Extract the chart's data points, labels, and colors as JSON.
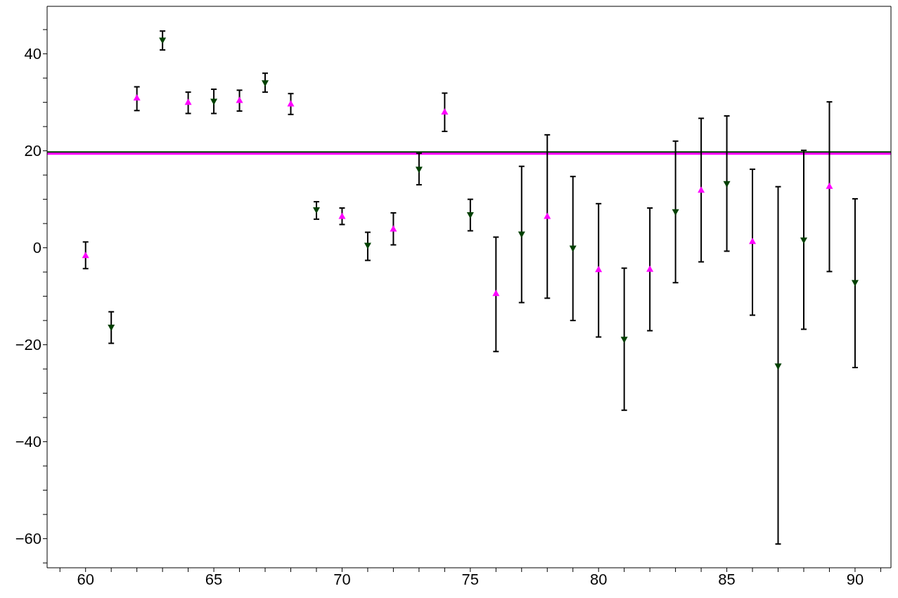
{
  "chart_data": {
    "type": "scatter",
    "xlim": [
      58.5,
      91.4
    ],
    "ylim": [
      -66,
      49.8
    ],
    "xticks": [
      {
        "value": 59,
        "label": null
      },
      60,
      {
        "value": 61,
        "label": null
      },
      {
        "value": 62,
        "label": null
      },
      {
        "value": 63,
        "label": null
      },
      {
        "value": 64,
        "label": null
      },
      65,
      {
        "value": 66,
        "label": null
      },
      {
        "value": 67,
        "label": null
      },
      {
        "value": 68,
        "label": null
      },
      {
        "value": 69,
        "label": null
      },
      70,
      {
        "value": 71,
        "label": null
      },
      {
        "value": 72,
        "label": null
      },
      {
        "value": 73,
        "label": null
      },
      {
        "value": 74,
        "label": null
      },
      75,
      {
        "value": 76,
        "label": null
      },
      {
        "value": 77,
        "label": null
      },
      {
        "value": 78,
        "label": null
      },
      {
        "value": 79,
        "label": null
      },
      80,
      {
        "value": 81,
        "label": null
      },
      {
        "value": 82,
        "label": null
      },
      {
        "value": 83,
        "label": null
      },
      {
        "value": 84,
        "label": null
      },
      85,
      {
        "value": 86,
        "label": null
      },
      {
        "value": 87,
        "label": null
      },
      {
        "value": 88,
        "label": null
      },
      {
        "value": 89,
        "label": null
      },
      90,
      {
        "value": 91,
        "label": null
      }
    ],
    "yticks": [
      {
        "value": -65,
        "label": null
      },
      {
        "value": -60,
        "label": "−60"
      },
      {
        "value": -55,
        "label": null
      },
      {
        "value": -50,
        "label": null
      },
      {
        "value": -45,
        "label": null
      },
      {
        "value": -40,
        "label": "−40"
      },
      {
        "value": -35,
        "label": null
      },
      {
        "value": -30,
        "label": null
      },
      {
        "value": -25,
        "label": null
      },
      {
        "value": -20,
        "label": "−20"
      },
      {
        "value": -15,
        "label": null
      },
      {
        "value": -10,
        "label": null
      },
      {
        "value": -5,
        "label": null
      },
      0,
      {
        "value": 5,
        "label": null
      },
      {
        "value": 10,
        "label": null
      },
      {
        "value": 15,
        "label": null
      },
      20,
      {
        "value": 25,
        "label": null
      },
      {
        "value": 30,
        "label": null
      },
      {
        "value": 35,
        "label": null
      },
      40,
      {
        "value": 45,
        "label": null
      }
    ],
    "grid": false,
    "legend": false,
    "ref_lines": [
      {
        "axis": "y",
        "value": 19.7,
        "color": "#004000"
      },
      {
        "axis": "y",
        "value": 19.4,
        "color": "#ff00ff"
      }
    ],
    "series": [
      {
        "color": "#ff00ff",
        "marker": "triangle",
        "x": [
          60,
          62,
          64,
          66,
          68,
          70,
          72,
          74,
          76,
          78,
          80,
          82,
          84,
          86,
          89
        ],
        "values": [
          -1.7,
          30.8,
          29.9,
          30.3,
          29.6,
          6.4,
          3.8,
          27.9,
          -9.5,
          6.4,
          -4.6,
          -4.5,
          11.8,
          1.2,
          12.6
        ],
        "errors": [
          [
            -4.3,
            1.2
          ],
          [
            28.3,
            33.2
          ],
          [
            27.7,
            32.1
          ],
          [
            28.2,
            32.5
          ],
          [
            27.5,
            31.8
          ],
          [
            4.8,
            8.2
          ],
          [
            0.6,
            7.2
          ],
          [
            24.0,
            31.9
          ],
          [
            -21.4,
            2.2
          ],
          [
            -10.4,
            23.3
          ],
          [
            -18.4,
            9.1
          ],
          [
            -17.1,
            8.2
          ],
          [
            -2.9,
            26.7
          ],
          [
            -13.9,
            16.2
          ],
          [
            -4.9,
            30.1
          ]
        ]
      },
      {
        "color": "#004000",
        "marker": "triangle-down",
        "x": [
          61,
          63,
          65,
          67,
          69,
          71,
          73,
          75,
          77,
          79,
          81,
          83,
          85,
          87,
          88,
          90
        ],
        "values": [
          -16.3,
          42.9,
          30.3,
          34.1,
          7.9,
          0.6,
          16.3,
          6.9,
          2.9,
          0,
          -18.8,
          7.5,
          13.3,
          -24.3,
          1.7,
          -7.1
        ],
        "errors": [
          [
            -19.7,
            -13.2
          ],
          [
            40.8,
            44.7
          ],
          [
            27.7,
            32.7
          ],
          [
            32.1,
            36.0
          ],
          [
            5.9,
            9.5
          ],
          [
            -2.6,
            3.2
          ],
          [
            13.0,
            19.5
          ],
          [
            3.5,
            10.0
          ],
          [
            -11.3,
            16.8
          ],
          [
            -15.0,
            14.7
          ],
          [
            -33.5,
            -4.2
          ],
          [
            -7.2,
            22.0
          ],
          [
            -0.7,
            27.2
          ],
          [
            -61.1,
            12.6
          ],
          [
            -16.8,
            20.1
          ],
          [
            -24.7,
            10.1
          ]
        ]
      }
    ]
  }
}
